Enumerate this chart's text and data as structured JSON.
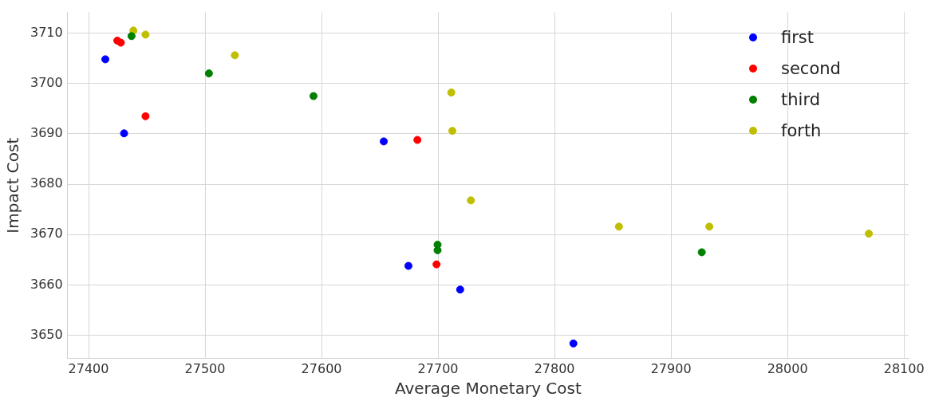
{
  "chart_data": {
    "type": "scatter",
    "xlabel": "Average Monetary Cost",
    "ylabel": "Impact Cost",
    "xlim": [
      27382,
      28104
    ],
    "ylim": [
      3645.4,
      3714.1
    ],
    "xticks": [
      27400,
      27500,
      27600,
      27700,
      27800,
      27900,
      28000,
      28100
    ],
    "yticks": [
      3650,
      3660,
      3670,
      3680,
      3690,
      3700,
      3710
    ],
    "grid": true,
    "legend": "top right",
    "marker": "circle",
    "series": [
      {
        "name": "first",
        "color": "#0000ff",
        "x": [
          27414.4,
          27430.5,
          27653.4,
          27674.6,
          27719.0,
          27816.2
        ],
        "values": [
          3704.8,
          3690.1,
          3688.5,
          3663.8,
          3659.1,
          3648.4
        ]
      },
      {
        "name": "second",
        "color": "#ff0000",
        "x": [
          27424.7,
          27427.7,
          27448.9,
          27682.3,
          27698.7
        ],
        "values": [
          3708.5,
          3708.1,
          3693.5,
          3688.8,
          3664.1
        ]
      },
      {
        "name": "third",
        "color": "#008000",
        "x": [
          27436.9,
          27503.3,
          27593.1,
          27699.6,
          27699.6,
          27926.4
        ],
        "values": [
          3709.4,
          3702.0,
          3697.5,
          3668.0,
          3666.9,
          3666.5
        ]
      },
      {
        "name": "forth",
        "color": "#bfbf00",
        "x": [
          27438.5,
          27448.9,
          27525.6,
          27711.4,
          27712.3,
          27728.2,
          27855.3,
          27932.9,
          28069.8
        ],
        "values": [
          3710.5,
          3709.7,
          3705.6,
          3698.2,
          3690.6,
          3676.8,
          3671.6,
          3671.6,
          3670.2
        ]
      }
    ]
  }
}
